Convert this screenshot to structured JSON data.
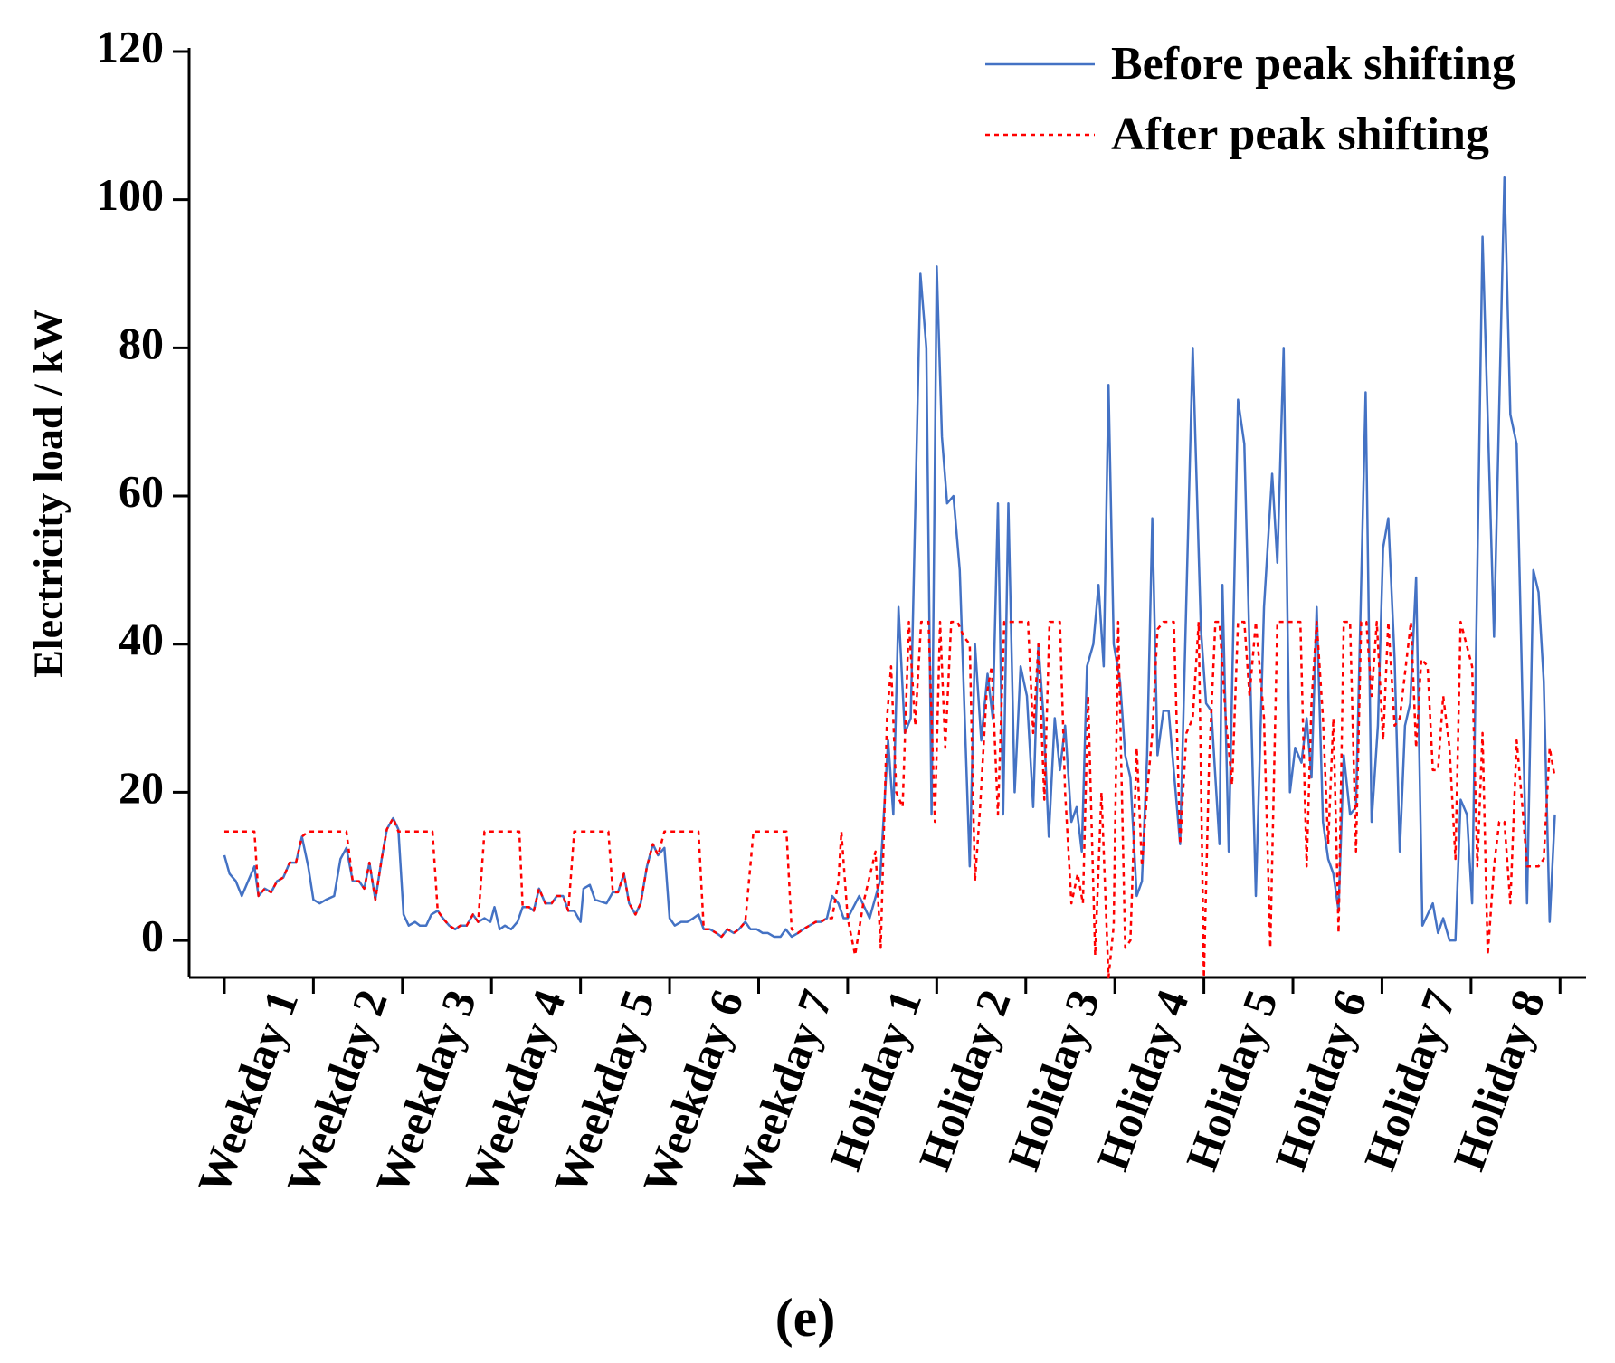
{
  "chart_data": {
    "type": "line",
    "caption": "(e)",
    "y_label": "Electricity load / kW",
    "categories": [
      "Weekday 1",
      "Weekday 2",
      "Weekday 3",
      "Weekday 4",
      "Weekday 5",
      "Weekday 6",
      "Weekday 7",
      "Holiday 1",
      "Holiday 2",
      "Holiday 3",
      "Holiday 4",
      "Holiday 5",
      "Holiday 6",
      "Holiday 7",
      "Holiday 8"
    ],
    "xlim": [
      -9.5,
      367
    ],
    "xticks": [
      0,
      24,
      48,
      72,
      96,
      120,
      144,
      168,
      192,
      216,
      240,
      264,
      288,
      312,
      336,
      360
    ],
    "ylim": [
      -5,
      120
    ],
    "yticks": [
      0,
      20,
      40,
      60,
      80,
      100,
      120
    ],
    "legend": "top-right",
    "series": [
      {
        "name": "Before peak shifting",
        "color": "#4472c4",
        "style": "solid",
        "x": [
          0,
          1.4,
          3.1,
          4.7,
          6.4,
          8.1,
          9.2,
          10.9,
          12.6,
          14.2,
          15.9,
          17.6,
          19.3,
          20.9,
          22.6,
          24,
          25.7,
          27.4,
          29.6,
          31.3,
          32.9,
          34.6,
          36.3,
          37.7,
          39.1,
          40.7,
          42.4,
          43.8,
          45.5,
          46.9,
          48.3,
          49.7,
          51.4,
          52.7,
          54.4,
          55.8,
          57.5,
          58.9,
          60.6,
          62.2,
          63.6,
          65.3,
          67,
          68.4,
          70.1,
          71.7,
          72.8,
          74.2,
          75.6,
          77.3,
          79,
          80.4,
          82.1,
          83.4,
          84.8,
          86.5,
          88.2,
          89.6,
          91.3,
          92.7,
          94.3,
          96,
          96.8,
          98.5,
          99.9,
          103,
          104.7,
          106.1,
          107.7,
          109.1,
          110.8,
          112.2,
          113.9,
          115.5,
          116.9,
          118.6,
          120,
          121.4,
          123.1,
          124.8,
          126.4,
          127.8,
          129.2,
          130.9,
          132.6,
          134,
          135.6,
          137.3,
          138.7,
          140.4,
          141.8,
          143.5,
          145.1,
          146.5,
          148.2,
          149.9,
          151.3,
          152.9,
          154.6,
          156,
          157.7,
          159.4,
          160.8,
          162.4,
          163.8,
          165.5,
          166.9,
          168,
          171.1,
          173.9,
          176.7,
          178.9,
          180.3,
          181.7,
          183.4,
          185,
          187.6,
          189.2,
          190.6,
          192,
          193.4,
          194.8,
          196.5,
          198.2,
          200.9,
          202.3,
          204,
          205.7,
          207.1,
          208.5,
          209.9,
          211.3,
          213,
          214.6,
          216.3,
          218,
          219.4,
          220.8,
          222.2,
          223.8,
          225.2,
          226.6,
          228.3,
          229.7,
          231.1,
          232.5,
          234.2,
          235.6,
          237,
          238.3,
          239.7,
          241.4,
          242.8,
          244.2,
          245.9,
          247.3,
          248.7,
          250.1,
          251.5,
          253.1,
          254.5,
          257.6,
          261,
          263.2,
          264.6,
          266,
          268.2,
          269,
          270.7,
          273.2,
          274.9,
          278,
          280.2,
          282.4,
          283.8,
          285.5,
          287.2,
          288.6,
          290.3,
          291.7,
          293,
          294.4,
          296.1,
          297.5,
          298.9,
          300.3,
          301.7,
          303.4,
          305,
          307.6,
          309.2,
          310.9,
          312.3,
          313.7,
          315.4,
          316.8,
          318.2,
          319.6,
          321.2,
          322.9,
          325.7,
          327.1,
          328.5,
          330.2,
          331.8,
          333.2,
          334.9,
          336.3,
          339.1,
          342.2,
          345,
          346.6,
          348.3,
          351.1,
          352.8,
          354.2,
          355.6,
          357.2,
          358.6
        ],
        "values": [
          11.5,
          9,
          8,
          6,
          8,
          10,
          6,
          7,
          6.5,
          8,
          8.5,
          10.5,
          10.5,
          14,
          10,
          5.5,
          5,
          5.5,
          6,
          11,
          12.5,
          8,
          8,
          7,
          10.5,
          5.5,
          11,
          15,
          16.5,
          15,
          3.5,
          2,
          2.5,
          2,
          2,
          3.5,
          4,
          3,
          2,
          1.5,
          2,
          2,
          3.5,
          2.5,
          3,
          2.5,
          4.5,
          1.5,
          2,
          1.5,
          2.5,
          4.5,
          4.5,
          4,
          7,
          5,
          5,
          6,
          6,
          4,
          4,
          2.5,
          7,
          7.5,
          5.5,
          5,
          6.5,
          6.5,
          9,
          5,
          3.5,
          5,
          10,
          13,
          11.5,
          12.5,
          3,
          2,
          2.5,
          2.5,
          3,
          3.5,
          1.5,
          1.5,
          1,
          0.5,
          1.5,
          1,
          1.5,
          2.5,
          1.5,
          1.5,
          1,
          1,
          0.5,
          0.5,
          1.5,
          0.5,
          1,
          1.5,
          2,
          2.5,
          2.5,
          3,
          6,
          5,
          3,
          3,
          6,
          3,
          8,
          27,
          17,
          45,
          28,
          30,
          90,
          80,
          17,
          91,
          68,
          59,
          60,
          50,
          10,
          40,
          27,
          36,
          30,
          59,
          17,
          59,
          20,
          37,
          33,
          18,
          40,
          30,
          14,
          30,
          23,
          29,
          16,
          18,
          12,
          37,
          40,
          48,
          37,
          75,
          40,
          35,
          25,
          22,
          6,
          8,
          25,
          57,
          25,
          31,
          31,
          13,
          80,
          42,
          32,
          31,
          13,
          48,
          12,
          73,
          67,
          6,
          45,
          63,
          51,
          80,
          20,
          26,
          24,
          30,
          22,
          45,
          16,
          11,
          9,
          4,
          25,
          17,
          18,
          74,
          16,
          29,
          53,
          57,
          38,
          12,
          29,
          32,
          49,
          2,
          5,
          1,
          3,
          0,
          0,
          19,
          17,
          5,
          95,
          41,
          103,
          71,
          67,
          5,
          50,
          47,
          35,
          2.5,
          17
        ]
      },
      {
        "name": "After peak shifting",
        "color": "#ff0000",
        "style": "dotted",
        "x": [
          0,
          8.1,
          9.2,
          10.9,
          12.6,
          14.2,
          15.9,
          17.6,
          19.3,
          20.9,
          22.6,
          32.9,
          34.6,
          36.3,
          37.7,
          39.1,
          40.7,
          42.4,
          43.8,
          45.5,
          46.9,
          56.1,
          57.5,
          58.9,
          60.6,
          62.2,
          63.6,
          65.3,
          67,
          68.4,
          70.1,
          79.5,
          80.4,
          82.1,
          83.4,
          84.8,
          86.5,
          88.2,
          89.6,
          91.3,
          92.7,
          94.3,
          103.5,
          104.7,
          106.1,
          107.7,
          109.1,
          110.8,
          112.2,
          113.9,
          115.5,
          116.9,
          118.6,
          127.8,
          129.2,
          130.9,
          132.6,
          134,
          135.6,
          137.3,
          138.7,
          140.4,
          142.6,
          151.5,
          152.9,
          154.6,
          156,
          157.7,
          159.4,
          160.8,
          162.4,
          163.8,
          165.5,
          166.3,
          168,
          170,
          172.2,
          175.5,
          176.9,
          178.6,
          179.7,
          181.1,
          182.8,
          184.5,
          186.2,
          187.8,
          189.8,
          191.5,
          192.9,
          194.3,
          195.9,
          197.6,
          199.3,
          200.9,
          202.3,
          203.7,
          205.4,
          206.8,
          208.5,
          210.2,
          211.8,
          213.2,
          214.9,
          216.6,
          218,
          219.4,
          221,
          222.4,
          223.8,
          225.2,
          226.6,
          228.3,
          230,
          231.4,
          232.8,
          234.7,
          236.4,
          238.3,
          239.7,
          240.9,
          242.8,
          244.2,
          245.9,
          247.3,
          248.7,
          250.1,
          251.5,
          253.1,
          254.5,
          255.9,
          257.6,
          259.3,
          261,
          262.6,
          264,
          265.4,
          267.1,
          268.2,
          269.9,
          271.6,
          273.2,
          274.9,
          276.3,
          278,
          280.2,
          281.9,
          283.8,
          285.5,
          288.6,
          290,
          291.7,
          293,
          294.4,
          296.1,
          297.5,
          298.9,
          300.3,
          301.7,
          303.4,
          305,
          306.4,
          307.8,
          309.2,
          310.6,
          312.3,
          313.7,
          315.4,
          316.8,
          319.8,
          321.2,
          322.6,
          324.3,
          325.7,
          327.1,
          328.5,
          330.2,
          331.8,
          333.2,
          336.3,
          337.7,
          339.1,
          340.5,
          342.2,
          343.6,
          345,
          346.6,
          348.3,
          349.7,
          351.1,
          352.8,
          354.2,
          355.6,
          357.2,
          358.6
        ],
        "values": [
          14.7,
          14.7,
          6,
          7,
          6.5,
          8,
          8.5,
          10.5,
          10.5,
          14,
          14.7,
          14.7,
          8,
          8,
          7,
          10.5,
          5.5,
          11,
          15,
          16.5,
          14.7,
          14.7,
          4,
          3,
          2,
          1.5,
          2,
          2,
          3.5,
          2.5,
          14.7,
          14.7,
          4.5,
          4.5,
          4,
          7,
          5,
          5,
          6,
          6,
          4,
          14.7,
          14.7,
          6.5,
          6.5,
          9,
          5,
          3.5,
          5,
          10,
          13,
          11.5,
          14.7,
          14.7,
          1.5,
          1.5,
          1,
          0.5,
          1.5,
          1,
          1.5,
          2.5,
          14.7,
          14.7,
          1.5,
          1,
          1.5,
          2,
          2.5,
          2.5,
          3,
          3,
          8,
          14.7,
          3,
          -2,
          5,
          12,
          -1,
          30,
          37,
          20,
          18,
          43,
          29,
          43,
          43,
          16,
          43,
          26,
          43,
          43,
          41,
          40,
          8,
          18,
          33,
          37,
          17,
          43,
          43,
          43,
          43,
          43,
          28,
          40,
          19,
          43,
          43,
          43,
          20,
          5,
          9,
          5,
          33,
          -2,
          20,
          -5,
          2,
          43,
          -1,
          0,
          26,
          10,
          20,
          28,
          42,
          43,
          43,
          43,
          13,
          28,
          30,
          43,
          -5,
          24,
          43,
          43,
          30,
          21,
          43,
          43,
          33,
          43,
          30,
          -1,
          43,
          43,
          43,
          43,
          10,
          32,
          43,
          30,
          13,
          30,
          1,
          43,
          43,
          12,
          43,
          43,
          33,
          43,
          27,
          43,
          29,
          30,
          43,
          26,
          38,
          37,
          23,
          23,
          33,
          26,
          11,
          43,
          37,
          10,
          28,
          -2,
          10,
          16,
          16,
          5,
          27,
          19,
          10,
          10,
          10,
          11,
          26,
          22
        ]
      }
    ]
  }
}
